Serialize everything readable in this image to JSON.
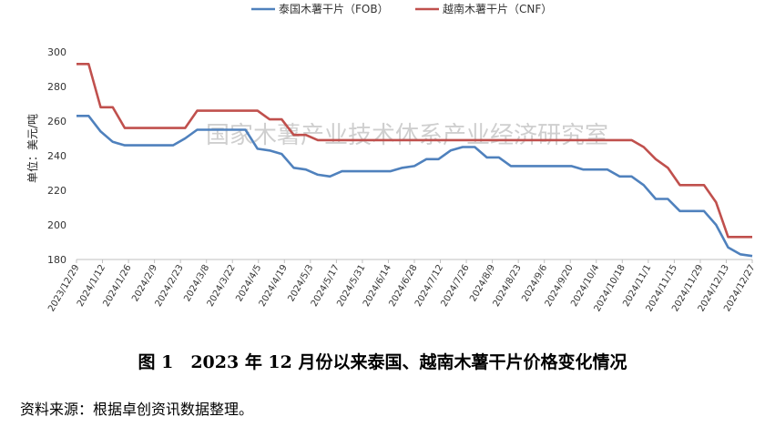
{
  "chart_data": {
    "type": "line",
    "ylabel": "单位：美元/吨",
    "ylim": [
      180,
      300
    ],
    "yticks": [
      180,
      200,
      220,
      240,
      260,
      280,
      300
    ],
    "watermark": "国家木薯产业技术体系产业经济研究室",
    "legend_position": "top-center",
    "grid": false,
    "x_labels": [
      "2023/12/29",
      "2024/1/12",
      "2024/1/26",
      "2024/2/9",
      "2024/2/23",
      "2024/3/8",
      "2024/3/22",
      "2024/4/5",
      "2024/4/19",
      "2024/5/3",
      "2024/5/17",
      "2024/5/31",
      "2024/6/14",
      "2024/6/28",
      "2024/7/12",
      "2024/7/26",
      "2024/8/9",
      "2024/8/23",
      "2024/9/6",
      "2024/9/20",
      "2024/10/4",
      "2024/10/18",
      "2024/11/1",
      "2024/11/15",
      "2024/11/29",
      "2024/12/13",
      "2024/12/27"
    ],
    "series": [
      {
        "name": "泰国木薯干片（FOB）",
        "color": "#4f81bd",
        "values": [
          263,
          263,
          254,
          248,
          246,
          246,
          246,
          246,
          246,
          250,
          255,
          255,
          255,
          255,
          255,
          244,
          243,
          241,
          233,
          232,
          229,
          228,
          231,
          231,
          231,
          231,
          231,
          233,
          234,
          238,
          238,
          243,
          245,
          245,
          239,
          239,
          234,
          234,
          234,
          234,
          234,
          234,
          232,
          232,
          232,
          228,
          228,
          223,
          215,
          215,
          208,
          208,
          208,
          200,
          187,
          183,
          182
        ]
      },
      {
        "name": "越南木薯干片（CNF）",
        "color": "#c0504d",
        "values": [
          293,
          293,
          268,
          268,
          256,
          256,
          256,
          256,
          256,
          256,
          266,
          266,
          266,
          266,
          266,
          266,
          261,
          261,
          252,
          252,
          249,
          249,
          249,
          249,
          249,
          249,
          249,
          249,
          249,
          249,
          249,
          249,
          249,
          249,
          249,
          249,
          249,
          249,
          249,
          249,
          249,
          249,
          249,
          249,
          249,
          249,
          249,
          245,
          238,
          233,
          223,
          223,
          223,
          213,
          193,
          193,
          193
        ]
      }
    ]
  },
  "caption": "图 1　2023 年 12 月份以来泰国、越南木薯干片价格变化情况",
  "source": "资料来源：根据卓创资讯数据整理。"
}
